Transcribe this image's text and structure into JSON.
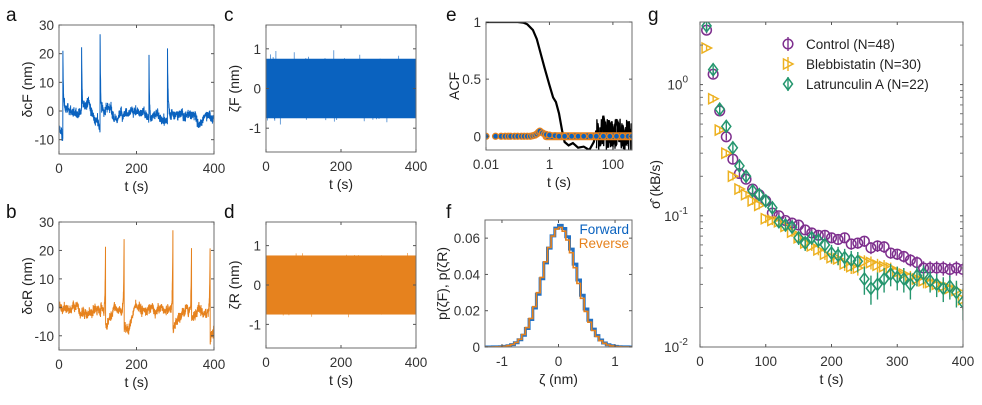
{
  "colors": {
    "forward": "#0a62bf",
    "reverse": "#e6821e",
    "control": "#7e2f8e",
    "blebbistatin": "#edb120",
    "latrunculin": "#24966e",
    "acf_black": "#000000"
  },
  "chart_data": [
    {
      "id": "a",
      "panel_label": "a",
      "type": "line",
      "title": "",
      "xlabel": "t (s)",
      "ylabel": "δcF (nm)",
      "xlim": [
        0,
        400
      ],
      "ylim": [
        -15,
        30
      ],
      "xticks": [
        0,
        200,
        400
      ],
      "yticks": [
        -10,
        0,
        10,
        20,
        30
      ],
      "series": [
        {
          "name": "forward",
          "color_key": "forward",
          "baseline": 0,
          "noise": 1.5,
          "spikes": [
            {
              "t": 10,
              "peak": 22,
              "pre": -12
            },
            {
              "t": 58,
              "peak": 24,
              "pre": -3
            },
            {
              "t": 106,
              "peak": 26,
              "pre": -9
            },
            {
              "t": 232,
              "peak": 26,
              "pre": -1
            },
            {
              "t": 280,
              "peak": 22,
              "pre": -5
            }
          ]
        }
      ]
    },
    {
      "id": "b",
      "panel_label": "b",
      "type": "line",
      "xlabel": "t (s)",
      "ylabel": "δcR (nm)",
      "xlim": [
        0,
        400
      ],
      "ylim": [
        -15,
        30
      ],
      "xticks": [
        0,
        200,
        400
      ],
      "yticks": [
        -10,
        0,
        10,
        20,
        30
      ],
      "series": [
        {
          "name": "reverse",
          "color_key": "reverse",
          "baseline": 0,
          "noise": 1.5,
          "spikes": [
            {
              "t": 120,
              "peak": 22,
              "post": -6
            },
            {
              "t": 168,
              "peak": 26,
              "post": -8
            },
            {
              "t": 294,
              "peak": 26,
              "post": -9
            },
            {
              "t": 342,
              "peak": 24,
              "post": -3
            },
            {
              "t": 390,
              "peak": 22,
              "post": -12
            }
          ]
        }
      ]
    },
    {
      "id": "c",
      "panel_label": "c",
      "type": "line",
      "xlabel": "t (s)",
      "ylabel": "ζF (nm)",
      "xlim": [
        0,
        400
      ],
      "ylim": [
        -1.6,
        1.6
      ],
      "xticks": [
        0,
        200,
        400
      ],
      "yticks": [
        -1,
        0,
        1
      ],
      "series": [
        {
          "name": "forward",
          "color_key": "forward",
          "mean": 0,
          "std": 0.3,
          "max_abs": 1.4
        }
      ]
    },
    {
      "id": "d",
      "panel_label": "d",
      "type": "line",
      "xlabel": "t (s)",
      "ylabel": "ζR (nm)",
      "xlim": [
        0,
        400
      ],
      "ylim": [
        -1.6,
        1.6
      ],
      "xticks": [
        0,
        200,
        400
      ],
      "yticks": [
        -1,
        0,
        1
      ],
      "series": [
        {
          "name": "reverse",
          "color_key": "reverse",
          "mean": 0,
          "std": 0.3,
          "max_abs": 1.3
        }
      ]
    },
    {
      "id": "e",
      "panel_label": "e",
      "type": "line",
      "xscale": "log",
      "xlabel": "t (s)",
      "ylabel": "ACF",
      "xlim": [
        0.01,
        400
      ],
      "ylim": [
        -0.12,
        1.0
      ],
      "xticks": [
        0.01,
        1,
        100
      ],
      "xtick_labels": [
        "0.01",
        "1",
        "100"
      ],
      "yticks": [
        0,
        0.5,
        1
      ],
      "ytick_labels": [
        "0",
        "0.5",
        "1"
      ],
      "series": [
        {
          "name": "ACF of δc",
          "color_key": "acf_black",
          "x": [
            0.01,
            0.05,
            0.1,
            0.15,
            0.2,
            0.3,
            0.4,
            0.5,
            0.7,
            1.0,
            1.3,
            1.6,
            2.0,
            2.5,
            3.0,
            4.0,
            5.5,
            8,
            12,
            18,
            25,
            30,
            40,
            50,
            60,
            70,
            80,
            100,
            130,
            160,
            200,
            260,
            320,
            400
          ],
          "y": [
            1.0,
            1.0,
            1.0,
            0.995,
            0.98,
            0.93,
            0.85,
            0.75,
            0.6,
            0.45,
            0.34,
            0.3,
            0.2,
            0.05,
            -0.05,
            -0.08,
            -0.06,
            -0.1,
            -0.09,
            -0.12,
            -0.05,
            0.05,
            -0.08,
            0.18,
            0.05,
            -0.1,
            0.12,
            0.02,
            0.15,
            -0.05,
            0.1,
            -0.03,
            0.05,
            0.0
          ]
        },
        {
          "name": "ACF of ζ (forward)",
          "color_key": "forward",
          "marker": "circle",
          "x": [
            0.01,
            0.02,
            0.03,
            0.04,
            0.05,
            0.06,
            0.08,
            0.1,
            0.13,
            0.16,
            0.2,
            0.25,
            0.3,
            0.35,
            0.4,
            0.45,
            0.5,
            0.6,
            0.7,
            0.8,
            1,
            1.5,
            2,
            3,
            5,
            8,
            12,
            20,
            30,
            50,
            80,
            130,
            200,
            300,
            400
          ],
          "y": [
            0,
            0,
            0,
            0,
            0,
            0,
            0,
            0,
            0,
            0,
            0,
            0,
            0.005,
            0.01,
            0.02,
            0.035,
            0.045,
            0.03,
            0.02,
            0.015,
            0.01,
            0.005,
            0,
            0,
            0,
            0,
            0,
            0,
            0,
            0,
            0,
            0,
            0,
            0,
            0
          ]
        }
      ]
    },
    {
      "id": "f",
      "panel_label": "f",
      "type": "line",
      "step": true,
      "xlabel": "ζ (nm)",
      "ylabel": "p(ζF), p(ζR)",
      "xlim": [
        -1.3,
        1.3
      ],
      "ylim": [
        0,
        0.07
      ],
      "xticks": [
        -1,
        0,
        1
      ],
      "yticks": [
        0,
        0.02,
        0.04,
        0.06
      ],
      "ytick_labels": [
        "0",
        "0.02",
        "0.04",
        "0.06"
      ],
      "legend": {
        "placement": "top-right",
        "entries": [
          "Forward",
          "Reverse"
        ]
      },
      "series": [
        {
          "name": "Forward",
          "color_key": "forward",
          "mean": 0.03,
          "std": 0.3,
          "peak": 0.067,
          "bin_width": 0.065
        },
        {
          "name": "Reverse",
          "color_key": "reverse",
          "mean": 0.02,
          "std": 0.3,
          "peak": 0.066,
          "bin_width": 0.065
        }
      ]
    },
    {
      "id": "g",
      "panel_label": "g",
      "type": "scatter",
      "yscale": "log",
      "xlabel": "t (s)",
      "ylabel": "σ̂ (kB/s)",
      "xlim": [
        0,
        400
      ],
      "ylim": [
        0.01,
        3
      ],
      "xticks": [
        0,
        100,
        200,
        300,
        400
      ],
      "yticks": [
        0.01,
        0.1,
        1
      ],
      "ytick_labels": [
        "10",
        "10",
        "10"
      ],
      "ytick_exponents": [
        "-2",
        "-1",
        "0"
      ],
      "legend": {
        "placement": "top-right",
        "entries": [
          "Control (N=48)",
          "Blebbistatin (N=30)",
          "Latrunculin A (N=22)"
        ]
      },
      "series": [
        {
          "name": "Control",
          "N": "48",
          "color_key": "control",
          "marker": "circle",
          "x": [
            10,
            20,
            30,
            40,
            50,
            60,
            70,
            80,
            90,
            100,
            110,
            120,
            130,
            140,
            150,
            160,
            170,
            180,
            190,
            200,
            210,
            220,
            230,
            240,
            250,
            260,
            270,
            280,
            290,
            300,
            310,
            320,
            330,
            340,
            350,
            360,
            370,
            380,
            390,
            400
          ],
          "y": [
            2.6,
            1.2,
            0.63,
            0.4,
            0.27,
            0.21,
            0.19,
            0.16,
            0.145,
            0.13,
            0.105,
            0.1,
            0.092,
            0.088,
            0.085,
            0.078,
            0.074,
            0.071,
            0.071,
            0.068,
            0.066,
            0.068,
            0.061,
            0.062,
            0.064,
            0.057,
            0.059,
            0.058,
            0.052,
            0.051,
            0.049,
            0.046,
            0.044,
            0.04,
            0.04,
            0.04,
            0.04,
            0.039,
            0.04,
            0.039
          ],
          "err": [
            0.15,
            0.08,
            0.04,
            0.025,
            0.02,
            0.015,
            0.012,
            0.01,
            0.009,
            0.008,
            0.007,
            0.007,
            0.006,
            0.006,
            0.006,
            0.006,
            0.006,
            0.006,
            0.006,
            0.006,
            0.006,
            0.006,
            0.006,
            0.006,
            0.006,
            0.006,
            0.006,
            0.006,
            0.005,
            0.005,
            0.005,
            0.005,
            0.005,
            0.005,
            0.005,
            0.005,
            0.005,
            0.005,
            0.005,
            0.005
          ]
        },
        {
          "name": "Blebbistatin",
          "N": "30",
          "color_key": "blebbistatin",
          "marker": "triangle-right",
          "x": [
            10,
            20,
            30,
            40,
            50,
            60,
            70,
            80,
            90,
            100,
            110,
            120,
            130,
            140,
            150,
            160,
            170,
            180,
            190,
            200,
            210,
            220,
            230,
            240,
            250,
            260,
            270,
            280,
            290,
            300,
            310,
            320,
            330,
            340,
            350,
            360,
            370,
            380,
            390,
            400
          ],
          "y": [
            1.9,
            0.78,
            0.45,
            0.3,
            0.2,
            0.16,
            0.145,
            0.13,
            0.12,
            0.095,
            0.092,
            0.09,
            0.083,
            0.075,
            0.068,
            0.062,
            0.059,
            0.055,
            0.051,
            0.048,
            0.047,
            0.043,
            0.041,
            0.04,
            0.045,
            0.044,
            0.042,
            0.041,
            0.04,
            0.037,
            0.036,
            0.034,
            0.033,
            0.032,
            0.031,
            0.03,
            0.029,
            0.028,
            0.027,
            0.023
          ],
          "err": [
            0.1,
            0.05,
            0.03,
            0.02,
            0.014,
            0.011,
            0.01,
            0.009,
            0.008,
            0.007,
            0.007,
            0.006,
            0.006,
            0.006,
            0.005,
            0.005,
            0.005,
            0.005,
            0.005,
            0.005,
            0.005,
            0.005,
            0.005,
            0.005,
            0.005,
            0.005,
            0.005,
            0.005,
            0.004,
            0.004,
            0.004,
            0.004,
            0.004,
            0.004,
            0.004,
            0.004,
            0.004,
            0.004,
            0.004,
            0.004
          ]
        },
        {
          "name": "Latrunculin A",
          "N": "22",
          "color_key": "latrunculin",
          "marker": "diamond",
          "x": [
            10,
            20,
            30,
            40,
            50,
            60,
            70,
            80,
            90,
            100,
            110,
            120,
            130,
            140,
            150,
            160,
            170,
            180,
            190,
            200,
            210,
            220,
            230,
            240,
            250,
            260,
            270,
            280,
            290,
            300,
            310,
            320,
            330,
            340,
            350,
            360,
            370,
            380,
            390,
            400
          ],
          "y": [
            2.8,
            1.3,
            0.65,
            0.48,
            0.33,
            0.24,
            0.2,
            0.155,
            0.145,
            0.13,
            0.115,
            0.09,
            0.085,
            0.082,
            0.068,
            0.062,
            0.068,
            0.065,
            0.06,
            0.052,
            0.05,
            0.048,
            0.046,
            0.045,
            0.033,
            0.028,
            0.03,
            0.033,
            0.036,
            0.034,
            0.033,
            0.03,
            0.035,
            0.036,
            0.032,
            0.03,
            0.028,
            0.029,
            0.026,
            0.022
          ],
          "err": [
            0.2,
            0.1,
            0.06,
            0.04,
            0.03,
            0.022,
            0.018,
            0.014,
            0.012,
            0.011,
            0.01,
            0.009,
            0.009,
            0.008,
            0.008,
            0.008,
            0.008,
            0.008,
            0.008,
            0.008,
            0.008,
            0.008,
            0.008,
            0.008,
            0.008,
            0.007,
            0.007,
            0.007,
            0.007,
            0.007,
            0.007,
            0.007,
            0.006,
            0.006,
            0.006,
            0.006,
            0.006,
            0.006,
            0.006,
            0.006
          ]
        }
      ]
    }
  ]
}
